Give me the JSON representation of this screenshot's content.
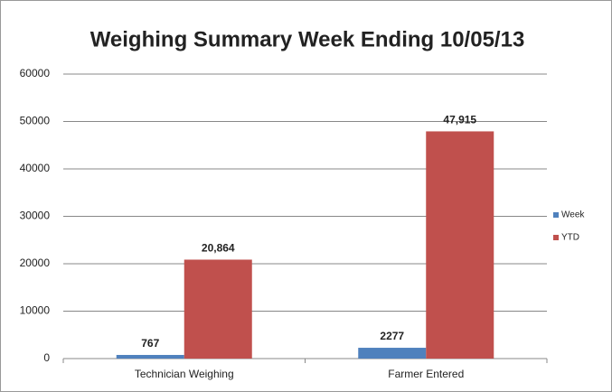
{
  "chart_data": {
    "type": "bar",
    "title": "Weighing Summary Week Ending 10/05/13",
    "categories": [
      "Technician Weighing",
      "Farmer Entered"
    ],
    "series": [
      {
        "name": "Week",
        "color": "#4f81bd",
        "values": [
          767,
          2277
        ]
      },
      {
        "name": "YTD",
        "color": "#c0504d",
        "values": [
          20864,
          47915
        ],
        "value_labels": [
          "20,864",
          "47,915"
        ]
      }
    ],
    "ylim": [
      0,
      60000
    ],
    "yticks": [
      0,
      10000,
      20000,
      30000,
      40000,
      50000,
      60000
    ],
    "grid": true,
    "legend": "right"
  }
}
